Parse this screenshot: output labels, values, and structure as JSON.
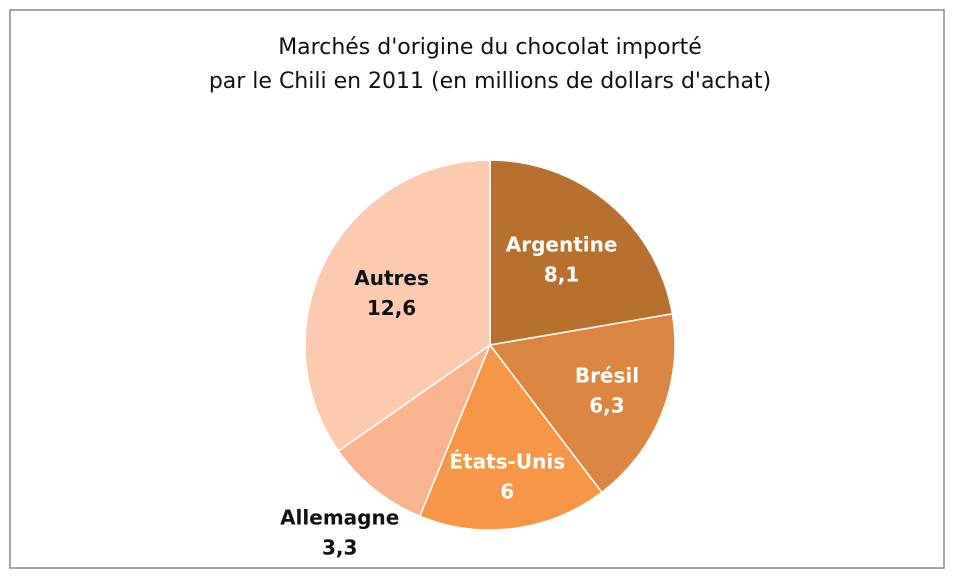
{
  "chart_data": {
    "type": "pie",
    "title": [
      "Marchés d'origine du chocolat importé",
      "par le Chili en 2011 (en millions de dollars d'achat)"
    ],
    "categories": [
      "Argentine",
      "Brésil",
      "États-Unis",
      "Allemagne",
      "Autres"
    ],
    "values": [
      8.1,
      6.3,
      6,
      3.3,
      12.6
    ],
    "value_labels": [
      "8,1",
      "6,3",
      "6",
      "3,3",
      "12,6"
    ],
    "colors": [
      "#b8702f",
      "#db8543",
      "#f79646",
      "#f9b38e",
      "#fbcab0"
    ]
  }
}
